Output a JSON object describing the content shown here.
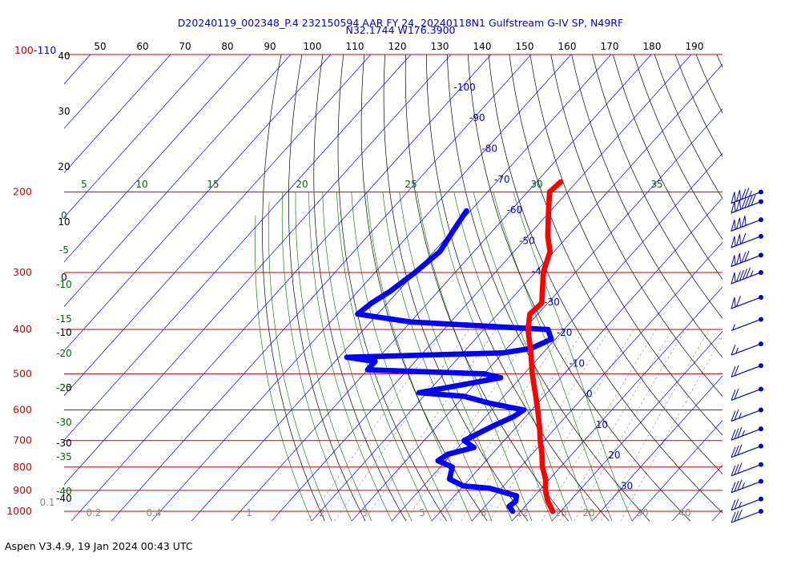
{
  "header": {
    "title_line1": "D20240119_002348_P.4 232150594 AAR FY 24, 20240118N1 Gulfstream G-IV SP, N49RF",
    "title_line2": "N32.1744 W176.3900"
  },
  "footer": {
    "version": "Aspen V3.4.9, 19 Jan 2024  00:43 UTC"
  },
  "colors": {
    "isobar": "#cc0000",
    "temperature_trace": "#ff0000",
    "dewpoint_trace": "#0000ff",
    "isotherm": "#0000cc",
    "dry_adiabat": "#000000",
    "moist_adiabat": "#006600",
    "mixing_ratio": "#888888",
    "top_axis_labels": "#000000",
    "wind_barbs": "#0000cc"
  },
  "chart_data": {
    "type": "skew-t log-p",
    "title": "D20240119_002348_P.4 232150594 AAR FY 24, 20240118N1 Gulfstream G-IV SP, N49RF",
    "subtitle": "N32.1744 W176.3900",
    "yaxis": {
      "scale": "log",
      "ylim": [
        1000,
        100
      ],
      "pressure_ticks": [
        1000,
        900,
        800,
        700,
        600,
        500,
        400,
        300,
        200
      ],
      "top_label_red": "100",
      "top_label_blue": "-110"
    },
    "top_axis_ticks": [
      "50",
      "60",
      "70",
      "80",
      "90",
      "100",
      "110",
      "120",
      "130",
      "140",
      "150",
      "160",
      "170",
      "180",
      "190"
    ],
    "isotherm_labels": [
      "-100",
      "-90",
      "-80",
      "-70",
      "-60",
      "-50",
      "-40",
      "-30",
      "-20",
      "-10",
      "0",
      "10",
      "20",
      "30"
    ],
    "dry_adiabat_left_labels": [
      "40",
      "30",
      "20",
      "10",
      "0",
      "-10",
      "-20",
      "-30",
      "-40"
    ],
    "moist_adiabat_top_labels": [
      "5",
      "10",
      "15",
      "20",
      "25",
      "30",
      "35"
    ],
    "moist_adiabat_left_labels": [
      "0",
      "-5",
      "-10",
      "-15",
      "-20",
      "-25",
      "-30",
      "-35",
      "-40"
    ],
    "mixing_ratio_labels": [
      "0.1",
      "0.2",
      "0.4",
      "1",
      "2",
      "3",
      "5",
      "8",
      "12",
      "16",
      "20",
      "30",
      "40"
    ],
    "temperature_profile": [
      {
        "p": 1000,
        "t": 18.0
      },
      {
        "p": 950,
        "t": 14.5
      },
      {
        "p": 925,
        "t": 13.0
      },
      {
        "p": 900,
        "t": 11.5
      },
      {
        "p": 850,
        "t": 9.0
      },
      {
        "p": 800,
        "t": 5.5
      },
      {
        "p": 750,
        "t": 2.5
      },
      {
        "p": 700,
        "t": -1.0
      },
      {
        "p": 650,
        "t": -4.5
      },
      {
        "p": 600,
        "t": -8.5
      },
      {
        "p": 550,
        "t": -13.0
      },
      {
        "p": 500,
        "t": -18.0
      },
      {
        "p": 450,
        "t": -23.0
      },
      {
        "p": 400,
        "t": -29.0
      },
      {
        "p": 370,
        "t": -32.0
      },
      {
        "p": 350,
        "t": -31.5
      },
      {
        "p": 300,
        "t": -38.0
      },
      {
        "p": 270,
        "t": -41.0
      },
      {
        "p": 250,
        "t": -45.0
      },
      {
        "p": 220,
        "t": -50.5
      },
      {
        "p": 200,
        "t": -54.5
      },
      {
        "p": 190,
        "t": -54.0
      }
    ],
    "dewpoint_profile": [
      {
        "p": 1000,
        "td": 8.0
      },
      {
        "p": 975,
        "td": 6.0
      },
      {
        "p": 950,
        "td": 6.5
      },
      {
        "p": 925,
        "td": 5.5
      },
      {
        "p": 890,
        "td": -3.0
      },
      {
        "p": 880,
        "td": -10.0
      },
      {
        "p": 850,
        "td": -15.0
      },
      {
        "p": 800,
        "td": -17.0
      },
      {
        "p": 775,
        "td": -22.0
      },
      {
        "p": 750,
        "td": -21.0
      },
      {
        "p": 725,
        "td": -16.0
      },
      {
        "p": 700,
        "td": -20.0
      },
      {
        "p": 650,
        "td": -16.0
      },
      {
        "p": 620,
        "td": -13.0
      },
      {
        "p": 600,
        "td": -12.0
      },
      {
        "p": 580,
        "td": -22.0
      },
      {
        "p": 560,
        "td": -30.0
      },
      {
        "p": 550,
        "td": -42.0
      },
      {
        "p": 510,
        "td": -25.0
      },
      {
        "p": 500,
        "td": -30.0
      },
      {
        "p": 490,
        "td": -60.0
      },
      {
        "p": 470,
        "td": -60.0
      },
      {
        "p": 460,
        "td": -68.0
      },
      {
        "p": 450,
        "td": -30.0
      },
      {
        "p": 440,
        "td": -24.0
      },
      {
        "p": 420,
        "td": -21.0
      },
      {
        "p": 400,
        "td": -24.0
      },
      {
        "p": 385,
        "td": -60.0
      },
      {
        "p": 370,
        "td": -75.0
      },
      {
        "p": 350,
        "td": -74.0
      },
      {
        "p": 330,
        "td": -72.0
      },
      {
        "p": 300,
        "td": -70.0
      },
      {
        "p": 270,
        "td": -68.5
      },
      {
        "p": 240,
        "td": -70.0
      },
      {
        "p": 220,
        "td": -71.0
      }
    ],
    "wind_barbs": [
      {
        "p": 200,
        "speed_kt": 125
      },
      {
        "p": 210,
        "speed_kt": 140
      },
      {
        "p": 230,
        "speed_kt": 150
      },
      {
        "p": 250,
        "speed_kt": 110
      },
      {
        "p": 275,
        "speed_kt": 120
      },
      {
        "p": 300,
        "speed_kt": 95
      },
      {
        "p": 340,
        "speed_kt": 60
      },
      {
        "p": 380,
        "speed_kt": 5
      },
      {
        "p": 430,
        "speed_kt": 15
      },
      {
        "p": 480,
        "speed_kt": 20
      },
      {
        "p": 540,
        "speed_kt": 20
      },
      {
        "p": 600,
        "speed_kt": 25
      },
      {
        "p": 660,
        "speed_kt": 35
      },
      {
        "p": 720,
        "speed_kt": 30
      },
      {
        "p": 790,
        "speed_kt": 30
      },
      {
        "p": 860,
        "speed_kt": 35
      },
      {
        "p": 940,
        "speed_kt": 25
      },
      {
        "p": 1000,
        "speed_kt": 30
      }
    ]
  }
}
